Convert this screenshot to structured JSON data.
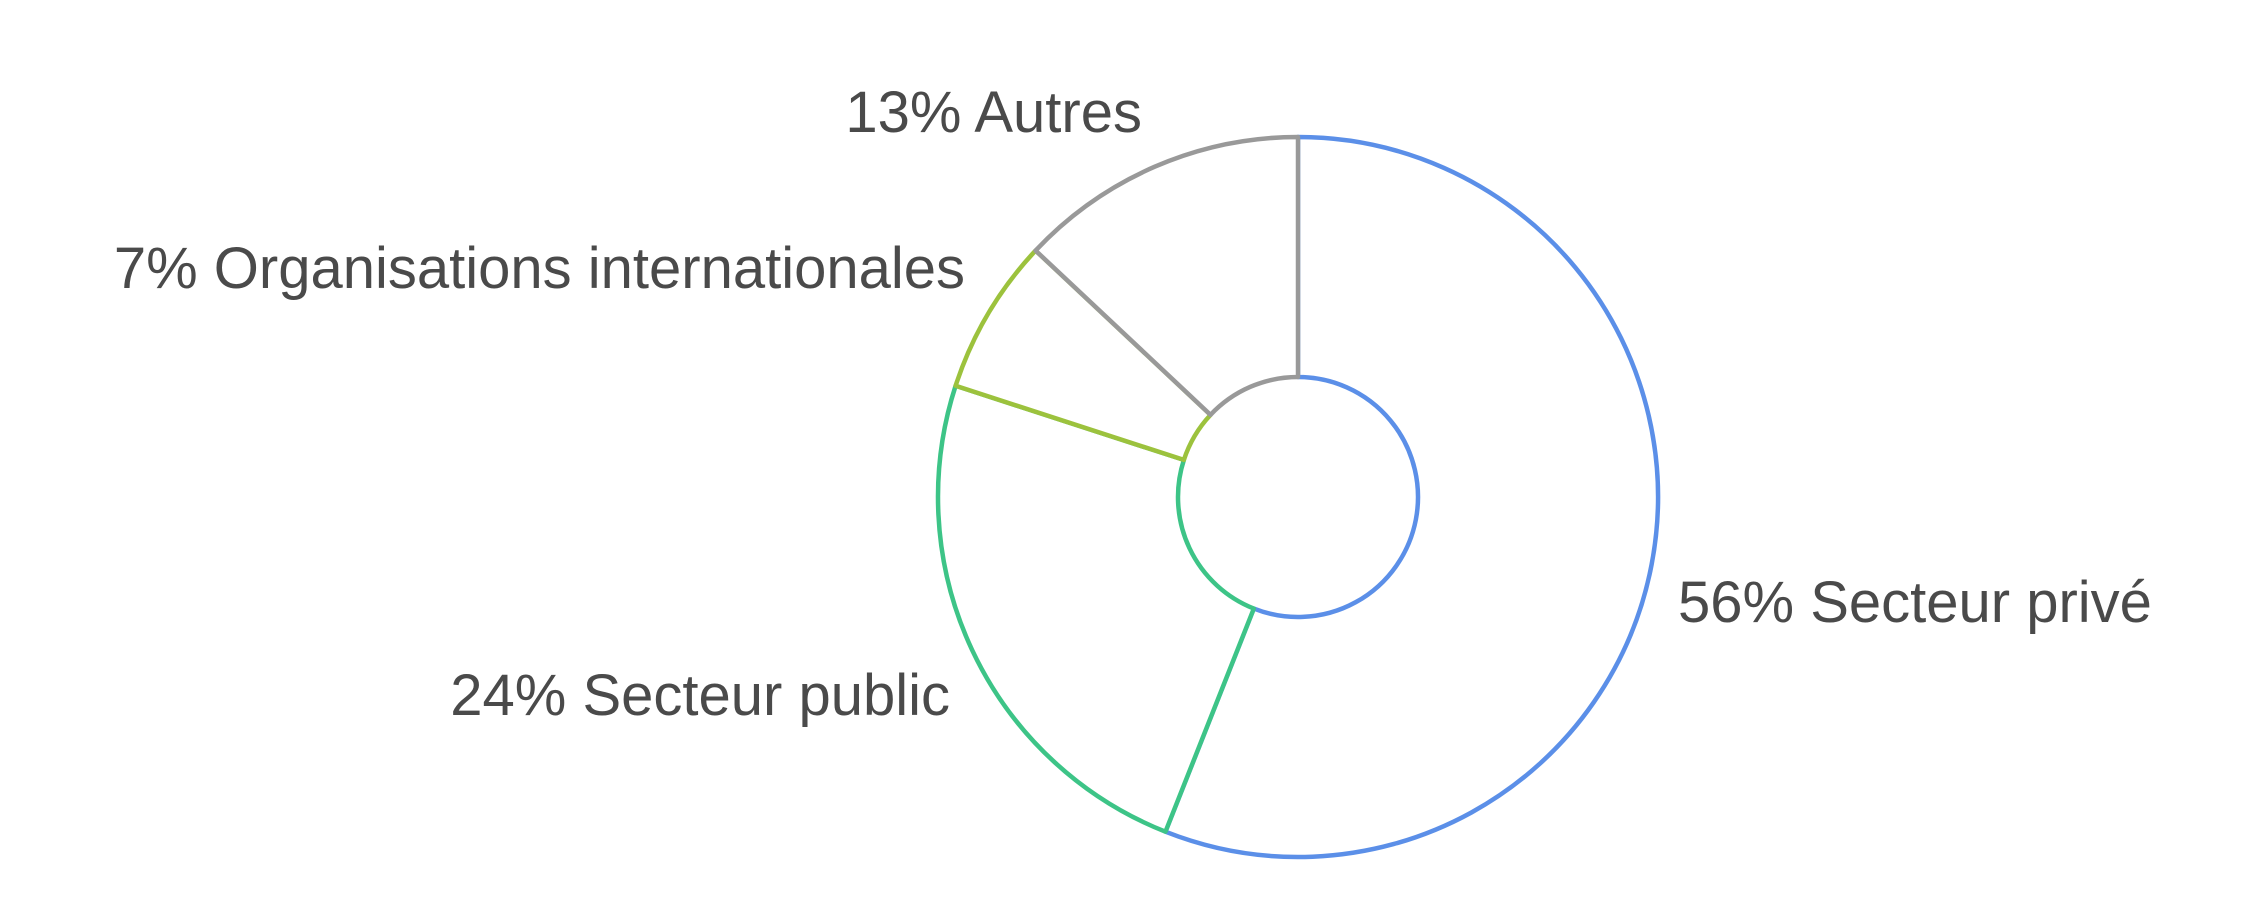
{
  "chart_data": {
    "type": "pie",
    "variant": "donut",
    "title": "",
    "slices": [
      {
        "label": "Secteur privé",
        "value": 56,
        "value_label": "56%",
        "color": "#5B8FE8"
      },
      {
        "label": "Secteur public",
        "value": 24,
        "value_label": "24%",
        "color": "#3DC487"
      },
      {
        "label": "Organisations internationales",
        "value": 7,
        "value_label": "7%",
        "color": "#9CC23D"
      },
      {
        "label": "Autres",
        "value": 13,
        "value_label": "13%",
        "color": "#999999"
      }
    ],
    "legend": "none",
    "grid": false
  }
}
